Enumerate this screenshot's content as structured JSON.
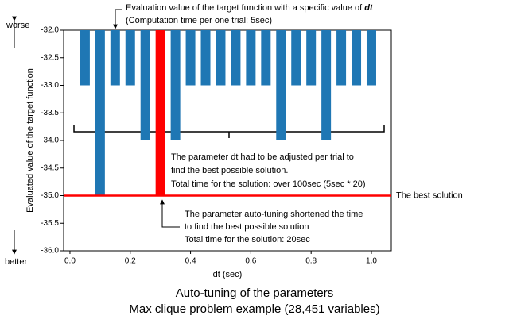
{
  "chart_data": {
    "type": "bar",
    "x": [
      0.05,
      0.1,
      0.15,
      0.2,
      0.25,
      0.3,
      0.35,
      0.4,
      0.45,
      0.5,
      0.55,
      0.6,
      0.65,
      0.7,
      0.75,
      0.8,
      0.85,
      0.9,
      0.95,
      1.0
    ],
    "values": [
      -33,
      -35,
      -33,
      -33,
      -34,
      -35,
      -34,
      -33,
      -33,
      -33,
      -33,
      -33,
      -33,
      -34,
      -33,
      -33,
      -34,
      -33,
      -33,
      -33
    ],
    "colors": [
      "#1f77b4",
      "#1f77b4",
      "#1f77b4",
      "#1f77b4",
      "#1f77b4",
      "#ff0000",
      "#1f77b4",
      "#1f77b4",
      "#1f77b4",
      "#1f77b4",
      "#1f77b4",
      "#1f77b4",
      "#1f77b4",
      "#1f77b4",
      "#1f77b4",
      "#1f77b4",
      "#1f77b4",
      "#1f77b4",
      "#1f77b4",
      "#1f77b4"
    ],
    "xlim": [
      -0.021,
      1.066
    ],
    "ylim": [
      -36,
      -32
    ],
    "xticks": [
      {
        "value": 0,
        "label": "0.0"
      },
      0.2,
      0.4,
      0.6,
      0.8,
      {
        "value": 1,
        "label": "1.0"
      }
    ],
    "yticks": [
      {
        "value": -32,
        "label": "-32.0"
      },
      -32.5,
      {
        "value": -33,
        "label": "-33.0"
      },
      -33.5,
      {
        "value": -34,
        "label": "-34.0"
      },
      -34.5,
      {
        "value": -35,
        "label": "-35.0"
      },
      -35.5,
      {
        "value": -36,
        "label": "-36.0"
      }
    ],
    "xlabel": "dt (sec)",
    "ylabel": "Evaluated value of the target function",
    "y_top_label": "worse",
    "y_bottom_label": "better",
    "best_line": {
      "value": -35,
      "label": "The best solution",
      "color": "#ff0000"
    },
    "top_note": {
      "line1": "Evaluation value of the target function with a specific value of ",
      "line1_em": "dt",
      "line2": "(Computation time per one trial: 5sec)"
    },
    "middle_note": [
      "The parameter dt had to be adjusted per trial to",
      "find the best possible solution.",
      "Total time for the solution: over 100sec (5sec * 20)"
    ],
    "bottom_note": [
      "The parameter auto-tuning shortened the time",
      "to find the best possible solution",
      "Total time for the solution: 20sec"
    ],
    "caption": [
      "Auto-tuning of the parameters",
      "Max clique problem example (28,451 variables)"
    ]
  }
}
